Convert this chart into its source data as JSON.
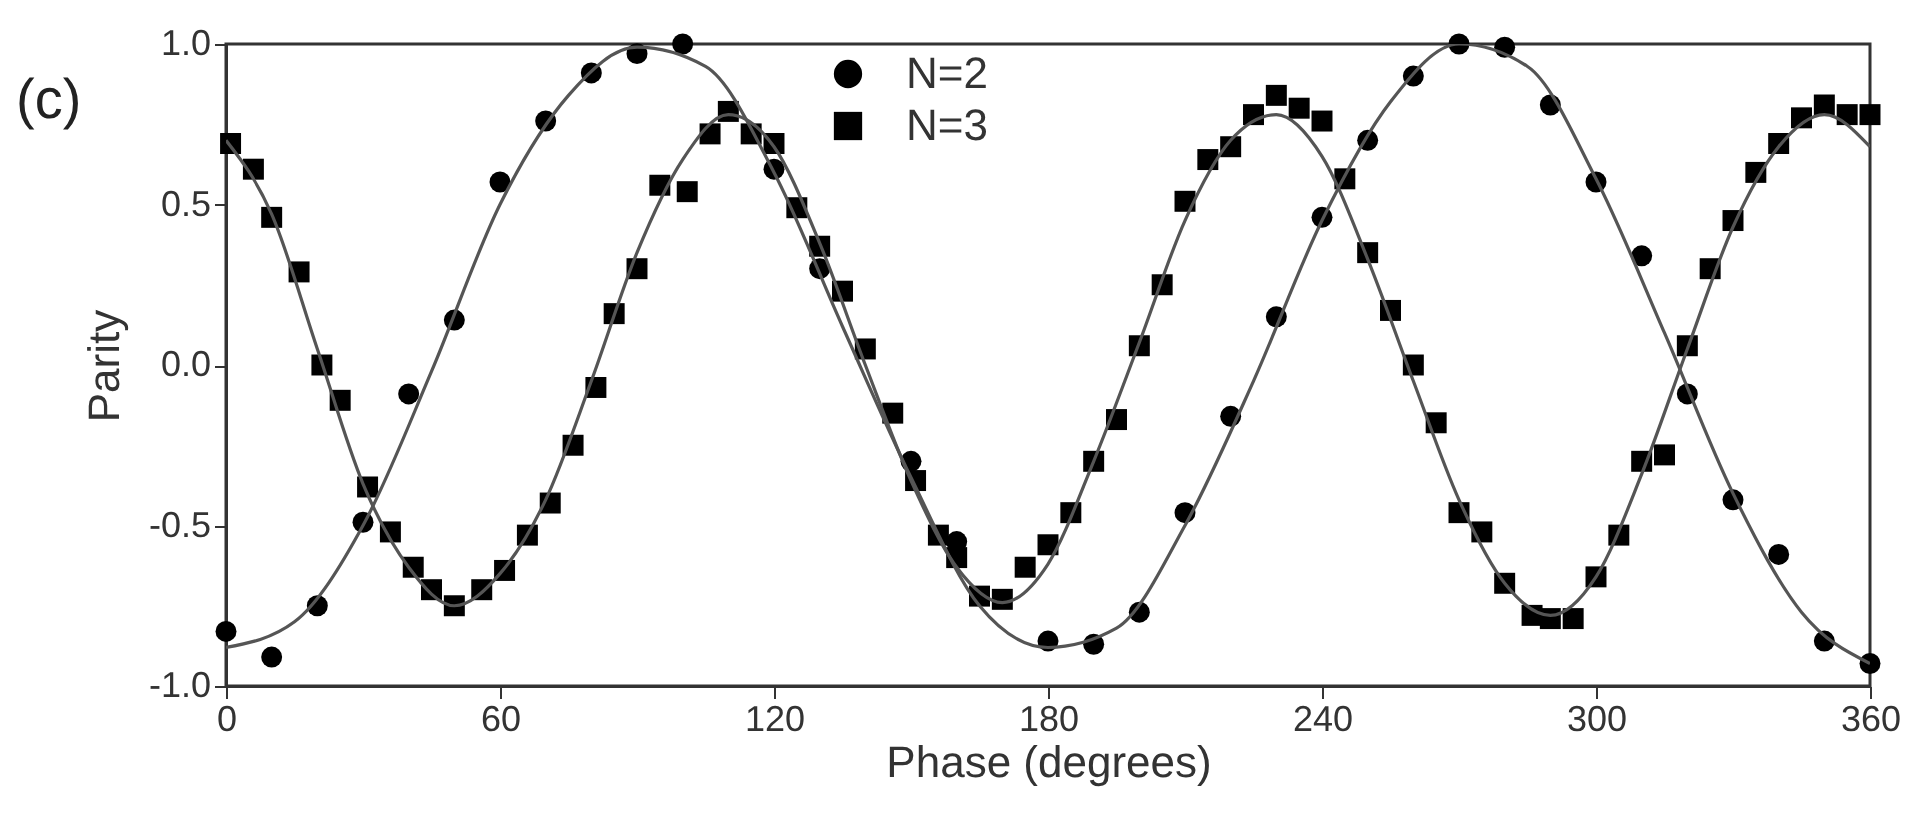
{
  "chart_data": {
    "type": "scatter",
    "xlabel": "Phase (degrees)",
    "ylabel": "Parity",
    "annotations": [
      "(c)"
    ],
    "xlim": [
      0,
      360
    ],
    "xticks": [
      0,
      60,
      120,
      180,
      240,
      300,
      360
    ],
    "ylim": [
      -1,
      1
    ],
    "yticks": [
      {
        "value": -1,
        "label": "-1.0"
      },
      {
        "value": -0.5,
        "label": "-0.5"
      },
      {
        "value": 0,
        "label": "0.0"
      },
      {
        "value": 0.5,
        "label": "0.5"
      },
      {
        "value": 1,
        "label": "1.0"
      }
    ],
    "grid": false,
    "legend": "top",
    "series": [
      {
        "name": "N=2",
        "color": "#000000",
        "marker": "circle",
        "x": [
          0,
          10,
          20,
          30,
          40,
          50,
          60,
          70,
          80,
          90,
          100,
          110,
          120,
          130,
          140,
          150,
          160,
          170,
          180,
          190,
          200,
          210,
          220,
          230,
          240,
          250,
          260,
          270,
          280,
          290,
          300,
          310,
          320,
          330,
          340,
          350,
          360
        ],
        "values": [
          -0.83,
          -0.91,
          -0.75,
          -0.49,
          -0.09,
          0.14,
          0.57,
          0.76,
          0.91,
          0.97,
          1.0,
          null,
          0.61,
          0.3,
          null,
          -0.3,
          -0.55,
          null,
          -0.86,
          -0.87,
          -0.77,
          -0.46,
          -0.16,
          0.15,
          0.46,
          0.7,
          0.9,
          1.0,
          0.99,
          0.81,
          0.57,
          0.34,
          -0.09,
          -0.42,
          -0.59,
          -0.86,
          -0.93
        ]
      },
      {
        "name": "N=3",
        "color": "#000000",
        "marker": "square",
        "x": [
          1,
          6,
          10,
          16,
          21,
          25,
          31,
          36,
          41,
          45,
          50,
          56,
          61,
          66,
          71,
          76,
          81,
          85,
          90,
          95,
          101,
          106,
          110,
          115,
          120,
          125,
          130,
          135,
          140,
          146,
          151,
          156,
          160,
          165,
          170,
          175,
          180,
          185,
          190,
          195,
          200,
          205,
          210,
          215,
          220,
          225,
          230,
          235,
          240,
          245,
          250,
          255,
          260,
          265,
          270,
          275,
          280,
          286,
          290,
          295,
          300,
          305,
          310,
          315,
          320,
          325,
          330,
          335,
          340,
          345,
          350,
          355,
          360
        ],
        "values": [
          0.69,
          0.61,
          0.46,
          0.29,
          0.0,
          -0.11,
          -0.38,
          -0.52,
          -0.63,
          -0.7,
          -0.75,
          -0.7,
          -0.64,
          -0.53,
          -0.43,
          -0.25,
          -0.07,
          0.16,
          0.3,
          0.56,
          0.54,
          0.72,
          0.79,
          0.72,
          0.69,
          0.49,
          0.37,
          0.23,
          0.05,
          -0.15,
          -0.36,
          -0.53,
          -0.6,
          -0.72,
          -0.73,
          -0.63,
          -0.56,
          -0.46,
          -0.3,
          -0.17,
          0.06,
          0.25,
          0.51,
          0.64,
          0.68,
          0.78,
          0.84,
          0.8,
          0.76,
          0.58,
          0.35,
          0.17,
          0.0,
          -0.18,
          -0.46,
          -0.52,
          -0.68,
          -0.78,
          -0.79,
          -0.79,
          -0.66,
          -0.53,
          -0.3,
          -0.28,
          0.06,
          0.3,
          0.45,
          0.6,
          0.69,
          0.77,
          0.81,
          0.78,
          0.78
        ]
      },
      {
        "type": "line",
        "color": "#555555",
        "x": [
          0,
          15,
          30,
          45,
          60,
          75,
          90,
          105,
          120,
          135,
          150,
          165,
          180,
          195,
          210,
          225,
          240,
          255,
          270,
          285,
          300,
          315,
          330,
          345,
          360
        ],
        "values": [
          -0.88,
          -0.8,
          -0.5,
          -0.02,
          0.5,
          0.84,
          0.99,
          0.93,
          0.6,
          0.12,
          -0.35,
          -0.75,
          -0.88,
          -0.82,
          -0.5,
          -0.05,
          0.45,
          0.82,
          1.0,
          0.93,
          0.58,
          0.1,
          -0.4,
          -0.77,
          -0.93
        ]
      },
      {
        "type": "line",
        "color": "#555555",
        "x": [
          0,
          10,
          20,
          30,
          40,
          50,
          60,
          70,
          80,
          90,
          100,
          110,
          120,
          130,
          140,
          150,
          160,
          170,
          180,
          190,
          200,
          210,
          220,
          230,
          240,
          250,
          260,
          270,
          280,
          290,
          300,
          310,
          320,
          330,
          340,
          350,
          360
        ],
        "values": [
          0.7,
          0.47,
          0.05,
          -0.37,
          -0.63,
          -0.75,
          -0.65,
          -0.42,
          -0.05,
          0.35,
          0.64,
          0.78,
          0.68,
          0.38,
          0.0,
          -0.36,
          -0.63,
          -0.74,
          -0.62,
          -0.3,
          0.07,
          0.45,
          0.7,
          0.78,
          0.65,
          0.33,
          -0.05,
          -0.42,
          -0.68,
          -0.78,
          -0.66,
          -0.34,
          0.05,
          0.43,
          0.68,
          0.78,
          0.68
        ]
      }
    ]
  }
}
